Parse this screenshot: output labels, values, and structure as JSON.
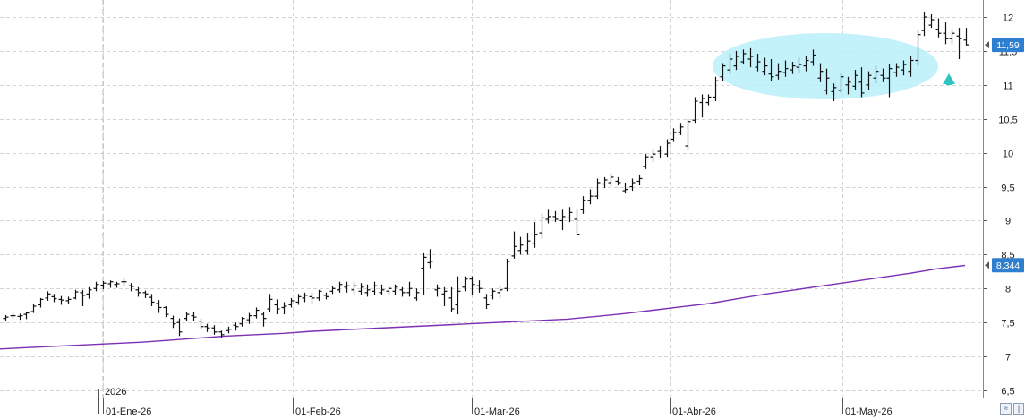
{
  "chart_data": {
    "type": "ohlc",
    "y_axis": {
      "ticks": [
        "6,5",
        "7",
        "7,5",
        "8",
        "8,5",
        "9",
        "9,5",
        "10",
        "10,5",
        "11",
        "11,5",
        "12"
      ],
      "range": [
        6.4,
        12.2
      ],
      "position": "right"
    },
    "x_axis": {
      "labels": [
        "01-Ene-26",
        "01-Feb-26",
        "01-Mar-26",
        "01-Abr-26",
        "01-May-26"
      ],
      "year_label": "2026"
    },
    "grid": true,
    "price_badge": {
      "label": "11,59",
      "value": 11.59,
      "color": "#2f7fd0"
    },
    "ma_badge": {
      "label": "8,344",
      "value": 8.344,
      "color": "#2f7fd0"
    },
    "moving_average": {
      "color": "#7d2fb5",
      "values": [
        7.11,
        7.13,
        7.15,
        7.17,
        7.19,
        7.21,
        7.24,
        7.27,
        7.3,
        7.32,
        7.34,
        7.37,
        7.39,
        7.41,
        7.43,
        7.45,
        7.47,
        7.49,
        7.51,
        7.53,
        7.55,
        7.59,
        7.63,
        7.68,
        7.73,
        7.78,
        7.85,
        7.92,
        7.98,
        8.04,
        8.1,
        8.16,
        8.22,
        8.29,
        8.34
      ]
    },
    "bars": [
      [
        7.56,
        7.61,
        7.53,
        7.58
      ],
      [
        7.6,
        7.64,
        7.56,
        7.6
      ],
      [
        7.59,
        7.63,
        7.54,
        7.6
      ],
      [
        7.62,
        7.66,
        7.55,
        7.64
      ],
      [
        7.66,
        7.78,
        7.64,
        7.74
      ],
      [
        7.76,
        7.86,
        7.72,
        7.84
      ],
      [
        7.86,
        7.96,
        7.82,
        7.92
      ],
      [
        7.88,
        7.92,
        7.8,
        7.85
      ],
      [
        7.84,
        7.89,
        7.76,
        7.83
      ],
      [
        7.82,
        7.88,
        7.77,
        7.84
      ],
      [
        7.86,
        7.98,
        7.84,
        7.95
      ],
      [
        7.94,
        7.98,
        7.74,
        7.9
      ],
      [
        7.92,
        8.02,
        7.85,
        7.98
      ],
      [
        8.0,
        8.1,
        7.96,
        8.06
      ],
      [
        8.05,
        8.11,
        7.99,
        8.08
      ],
      [
        8.07,
        8.12,
        8.01,
        8.1
      ],
      [
        8.06,
        8.1,
        8.01,
        8.07
      ],
      [
        8.1,
        8.15,
        8.04,
        8.1
      ],
      [
        8.04,
        8.08,
        7.96,
        8.03
      ],
      [
        7.98,
        8.02,
        7.88,
        7.94
      ],
      [
        7.94,
        7.97,
        7.86,
        7.92
      ],
      [
        7.87,
        7.92,
        7.74,
        7.8
      ],
      [
        7.78,
        7.83,
        7.64,
        7.72
      ],
      [
        7.72,
        7.74,
        7.58,
        7.62
      ],
      [
        7.56,
        7.6,
        7.42,
        7.48
      ],
      [
        7.5,
        7.56,
        7.3,
        7.36
      ],
      [
        7.56,
        7.66,
        7.52,
        7.62
      ],
      [
        7.6,
        7.66,
        7.52,
        7.58
      ],
      [
        7.52,
        7.56,
        7.4,
        7.44
      ],
      [
        7.44,
        7.48,
        7.36,
        7.42
      ],
      [
        7.42,
        7.46,
        7.32,
        7.36
      ],
      [
        7.36,
        7.38,
        7.28,
        7.32
      ],
      [
        7.38,
        7.44,
        7.34,
        7.4
      ],
      [
        7.46,
        7.5,
        7.38,
        7.44
      ],
      [
        7.48,
        7.58,
        7.44,
        7.56
      ],
      [
        7.54,
        7.64,
        7.48,
        7.6
      ],
      [
        7.6,
        7.72,
        7.56,
        7.68
      ],
      [
        7.62,
        7.66,
        7.44,
        7.56
      ],
      [
        7.7,
        7.92,
        7.66,
        7.84
      ],
      [
        7.76,
        7.84,
        7.62,
        7.7
      ],
      [
        7.72,
        7.8,
        7.62,
        7.74
      ],
      [
        7.76,
        7.86,
        7.72,
        7.82
      ],
      [
        7.8,
        7.92,
        7.76,
        7.88
      ],
      [
        7.86,
        7.94,
        7.8,
        7.9
      ],
      [
        7.88,
        7.94,
        7.78,
        7.86
      ],
      [
        7.86,
        7.98,
        7.82,
        7.96
      ],
      [
        7.9,
        7.94,
        7.84,
        7.88
      ],
      [
        7.96,
        8.04,
        7.92,
        8.0
      ],
      [
        7.98,
        8.1,
        7.94,
        8.06
      ],
      [
        8.02,
        8.1,
        7.94,
        8.04
      ],
      [
        7.98,
        8.1,
        7.92,
        8.04
      ],
      [
        7.96,
        8.08,
        7.9,
        8.02
      ],
      [
        7.94,
        8.06,
        7.88,
        7.98
      ],
      [
        7.96,
        8.1,
        7.9,
        8.04
      ],
      [
        7.94,
        8.06,
        7.9,
        7.98
      ],
      [
        7.96,
        8.04,
        7.9,
        8.0
      ],
      [
        7.96,
        8.06,
        7.9,
        8.02
      ],
      [
        7.98,
        8.02,
        7.88,
        7.94
      ],
      [
        7.94,
        8.1,
        7.88,
        8.0
      ],
      [
        7.86,
        8.0,
        7.82,
        7.94
      ],
      [
        8.3,
        8.52,
        7.9,
        8.46
      ],
      [
        8.38,
        8.58,
        8.3,
        8.4
      ],
      [
        7.98,
        8.06,
        7.88,
        8.0
      ],
      [
        7.92,
        8.02,
        7.74,
        7.96
      ],
      [
        7.86,
        8.02,
        7.66,
        7.7
      ],
      [
        7.76,
        8.18,
        7.62,
        7.96
      ],
      [
        8.02,
        8.18,
        7.96,
        8.14
      ],
      [
        8.14,
        8.18,
        7.9,
        8.06
      ],
      [
        8.04,
        8.12,
        7.94,
        8.0
      ],
      [
        7.86,
        7.92,
        7.7,
        7.76
      ],
      [
        7.9,
        8.0,
        7.84,
        7.96
      ],
      [
        7.94,
        8.04,
        7.86,
        7.98
      ],
      [
        8.0,
        8.44,
        7.96,
        8.4
      ],
      [
        8.48,
        8.84,
        8.44,
        8.62
      ],
      [
        8.56,
        8.76,
        8.5,
        8.64
      ],
      [
        8.56,
        8.82,
        8.5,
        8.7
      ],
      [
        8.66,
        8.98,
        8.6,
        8.8
      ],
      [
        8.82,
        9.1,
        8.74,
        9.04
      ],
      [
        9.02,
        9.16,
        8.96,
        9.06
      ],
      [
        9.06,
        9.14,
        8.98,
        9.02
      ],
      [
        9.0,
        9.16,
        8.86,
        9.06
      ],
      [
        9.04,
        9.2,
        8.98,
        9.12
      ],
      [
        9.02,
        9.16,
        8.78,
        8.8
      ],
      [
        9.16,
        9.36,
        9.1,
        9.3
      ],
      [
        9.3,
        9.46,
        9.24,
        9.36
      ],
      [
        9.36,
        9.62,
        9.32,
        9.56
      ],
      [
        9.54,
        9.64,
        9.48,
        9.6
      ],
      [
        9.56,
        9.7,
        9.5,
        9.64
      ],
      [
        9.58,
        9.64,
        9.52,
        9.56
      ],
      [
        9.44,
        9.56,
        9.4,
        9.46
      ],
      [
        9.5,
        9.62,
        9.44,
        9.56
      ],
      [
        9.58,
        9.68,
        9.52,
        9.62
      ],
      [
        9.8,
        9.98,
        9.76,
        9.94
      ],
      [
        9.94,
        10.06,
        9.86,
        9.98
      ],
      [
        10.02,
        10.1,
        9.92,
        10.04
      ],
      [
        9.98,
        10.2,
        9.94,
        10.14
      ],
      [
        10.2,
        10.36,
        10.16,
        10.3
      ],
      [
        10.3,
        10.44,
        10.26,
        10.38
      ],
      [
        10.1,
        10.5,
        10.04,
        10.46
      ],
      [
        10.48,
        10.82,
        10.44,
        10.76
      ],
      [
        10.74,
        10.86,
        10.52,
        10.8
      ],
      [
        10.74,
        10.86,
        10.7,
        10.82
      ],
      [
        10.82,
        11.12,
        10.76,
        11.06
      ],
      [
        11.12,
        11.32,
        11.06,
        11.28
      ],
      [
        11.22,
        11.46,
        11.16,
        11.38
      ],
      [
        11.28,
        11.5,
        11.22,
        11.42
      ],
      [
        11.34,
        11.52,
        11.3,
        11.46
      ],
      [
        11.38,
        11.54,
        11.26,
        11.42
      ],
      [
        11.26,
        11.46,
        11.2,
        11.34
      ],
      [
        11.2,
        11.4,
        11.14,
        11.28
      ],
      [
        11.16,
        11.38,
        11.06,
        11.12
      ],
      [
        11.14,
        11.32,
        11.08,
        11.2
      ],
      [
        11.18,
        11.36,
        11.12,
        11.24
      ],
      [
        11.22,
        11.34,
        11.16,
        11.28
      ],
      [
        11.26,
        11.4,
        11.18,
        11.3
      ],
      [
        11.28,
        11.42,
        11.2,
        11.36
      ],
      [
        11.34,
        11.52,
        11.28,
        11.44
      ],
      [
        11.1,
        11.32,
        11.04,
        11.2
      ],
      [
        10.92,
        11.24,
        10.86,
        11.1
      ],
      [
        10.9,
        11.02,
        10.76,
        10.96
      ],
      [
        10.92,
        11.18,
        10.88,
        11.12
      ],
      [
        11.0,
        11.12,
        10.86,
        11.04
      ],
      [
        10.98,
        11.22,
        10.92,
        11.14
      ],
      [
        11.04,
        11.26,
        10.82,
        10.88
      ],
      [
        11.0,
        11.2,
        10.92,
        11.14
      ],
      [
        11.1,
        11.28,
        11.02,
        11.2
      ],
      [
        11.14,
        11.24,
        11.04,
        11.1
      ],
      [
        11.1,
        11.3,
        10.82,
        11.24
      ],
      [
        11.18,
        11.32,
        11.12,
        11.26
      ],
      [
        11.22,
        11.36,
        11.14,
        11.3
      ],
      [
        11.2,
        11.42,
        11.12,
        11.36
      ],
      [
        11.36,
        11.8,
        11.28,
        11.74
      ],
      [
        11.8,
        12.08,
        11.72,
        12.0
      ],
      [
        11.88,
        12.04,
        11.84,
        11.96
      ],
      [
        11.82,
        11.98,
        11.7,
        11.76
      ],
      [
        11.76,
        11.92,
        11.6,
        11.68
      ],
      [
        11.68,
        11.82,
        11.6,
        11.76
      ],
      [
        11.72,
        11.84,
        11.38,
        11.68
      ],
      [
        11.66,
        11.84,
        11.58,
        11.59
      ]
    ]
  }
}
